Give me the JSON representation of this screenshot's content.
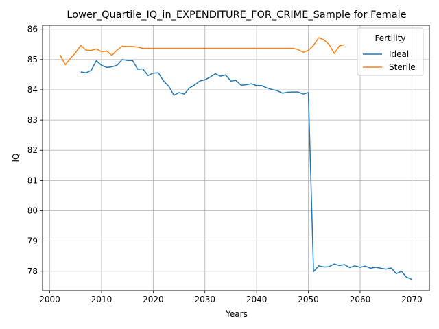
{
  "chart_data": {
    "type": "line",
    "title": "Lower_Quartile_IQ_in_EXPENDITURE_FOR_CRIME_Sample for Female",
    "xlabel": "Years",
    "ylabel": "IQ",
    "xlim": [
      1998.6,
      2073.4
    ],
    "ylim": [
      77.36,
      86.13
    ],
    "x_ticks": [
      2000,
      2010,
      2020,
      2030,
      2040,
      2050,
      2060,
      2070
    ],
    "y_ticks": [
      78,
      79,
      80,
      81,
      82,
      83,
      84,
      85,
      86
    ],
    "grid": true,
    "legend": {
      "title": "Fertility",
      "placement": "top-right"
    },
    "series": [
      {
        "name": "Ideal",
        "color": "#1f77b4",
        "x": [
          2006,
          2007,
          2008,
          2009,
          2010,
          2011,
          2012,
          2013,
          2014,
          2015,
          2016,
          2017,
          2018,
          2019,
          2020,
          2021,
          2022,
          2023,
          2024,
          2025,
          2026,
          2027,
          2028,
          2029,
          2030,
          2031,
          2032,
          2033,
          2034,
          2035,
          2036,
          2037,
          2038,
          2039,
          2040,
          2041,
          2042,
          2043,
          2044,
          2045,
          2046,
          2047,
          2048,
          2049,
          2050,
          2051,
          2052,
          2053,
          2054,
          2055,
          2056,
          2057,
          2058,
          2059,
          2060,
          2061,
          2062,
          2063,
          2064,
          2065,
          2066,
          2067,
          2068,
          2069,
          2070
        ],
        "values": [
          84.59,
          84.56,
          84.64,
          84.96,
          84.81,
          84.74,
          84.76,
          84.81,
          85.0,
          84.97,
          84.97,
          84.68,
          84.69,
          84.47,
          84.55,
          84.56,
          84.29,
          84.12,
          83.82,
          83.91,
          83.86,
          84.06,
          84.16,
          84.29,
          84.33,
          84.42,
          84.53,
          84.45,
          84.49,
          84.29,
          84.31,
          84.15,
          84.17,
          84.2,
          84.14,
          84.14,
          84.06,
          84.01,
          83.97,
          83.89,
          83.92,
          83.93,
          83.93,
          83.86,
          83.91,
          77.99,
          78.18,
          78.14,
          78.15,
          78.24,
          78.19,
          78.22,
          78.12,
          78.18,
          78.13,
          78.17,
          78.1,
          78.13,
          78.1,
          78.07,
          78.11,
          77.92,
          78.0,
          77.8,
          77.73
        ]
      },
      {
        "name": "Sterile",
        "color": "#ff7f0e",
        "x": [
          2002,
          2003,
          2004,
          2005,
          2006,
          2007,
          2008,
          2009,
          2010,
          2011,
          2012,
          2013,
          2014,
          2015,
          2016,
          2017,
          2018,
          2019,
          2020,
          2021,
          2022,
          2023,
          2024,
          2025,
          2026,
          2027,
          2028,
          2029,
          2030,
          2031,
          2032,
          2033,
          2034,
          2035,
          2036,
          2037,
          2038,
          2039,
          2040,
          2041,
          2042,
          2043,
          2044,
          2045,
          2046,
          2047,
          2048,
          2049,
          2050,
          2051,
          2052,
          2053,
          2054,
          2055,
          2056,
          2057
        ],
        "values": [
          85.15,
          84.83,
          85.04,
          85.23,
          85.47,
          85.31,
          85.3,
          85.35,
          85.26,
          85.28,
          85.14,
          85.31,
          85.44,
          85.43,
          85.43,
          85.41,
          85.37,
          85.37,
          85.37,
          85.37,
          85.37,
          85.37,
          85.37,
          85.37,
          85.37,
          85.37,
          85.37,
          85.37,
          85.37,
          85.37,
          85.37,
          85.37,
          85.37,
          85.37,
          85.37,
          85.37,
          85.37,
          85.37,
          85.37,
          85.37,
          85.37,
          85.37,
          85.37,
          85.37,
          85.37,
          85.37,
          85.33,
          85.24,
          85.3,
          85.47,
          85.72,
          85.65,
          85.5,
          85.2,
          85.45,
          85.49
        ]
      }
    ]
  }
}
